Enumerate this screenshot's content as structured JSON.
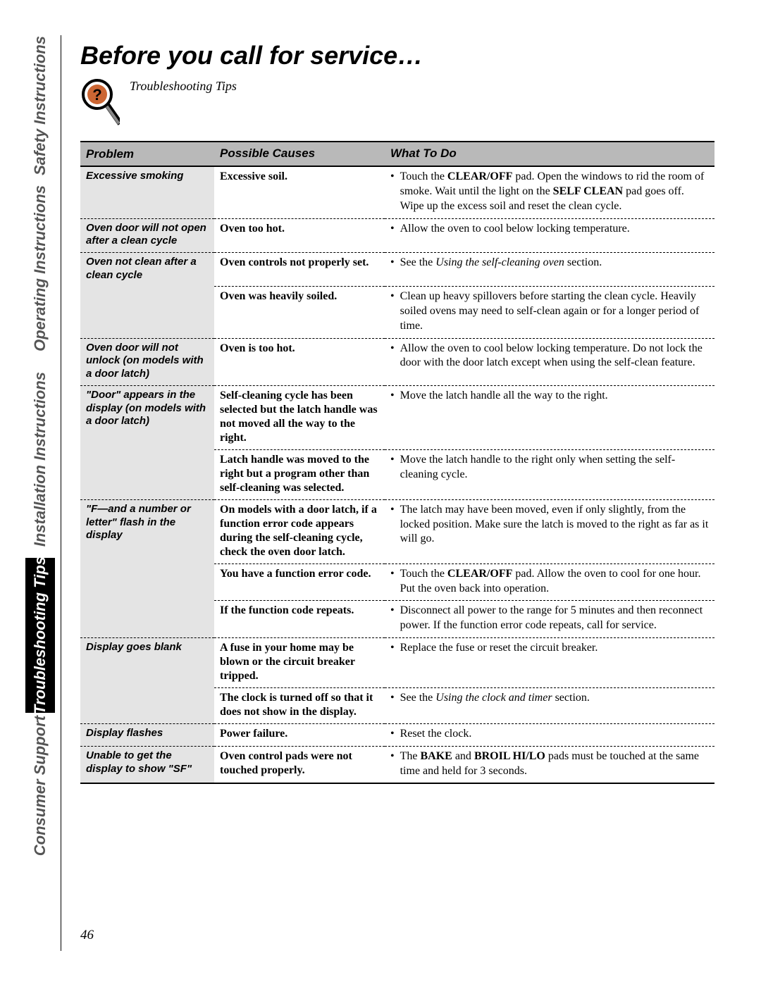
{
  "page_number": "46",
  "title": "Before you call for service…",
  "subtitle": "Troubleshooting Tips",
  "tabs": [
    {
      "label": "Safety Instructions",
      "active": false
    },
    {
      "label": "Operating Instructions",
      "active": false
    },
    {
      "label": "Installation Instructions",
      "active": false
    },
    {
      "label": "Troubleshooting Tips",
      "active": true
    },
    {
      "label": "Consumer Support",
      "active": false
    }
  ],
  "tab_heights": [
    200,
    262,
    280,
    220,
    208
  ],
  "headers": {
    "c1": "Problem",
    "c2": "Possible Causes",
    "c3": "What To Do"
  },
  "rows": [
    {
      "problem": "Excessive smoking",
      "cause": "Excessive soil.",
      "todo": "Touch the <b>CLEAR/OFF</b> pad. Open the windows to rid the room of smoke. Wait until the light on the <b>SELF CLEAN</b> pad goes off. Wipe up the excess soil and reset the clean cycle.",
      "newProblem": true,
      "sepAfter": true
    },
    {
      "problem": "Oven door will not open after a clean cycle",
      "cause": "Oven too hot.",
      "todo": "Allow the oven to cool below locking temperature.",
      "newProblem": true,
      "sepAfter": true
    },
    {
      "problem": "Oven not clean after a clean cycle",
      "cause": "Oven controls not properly set.",
      "todo": "See the <i>Using the self-cleaning oven</i> section.",
      "newProblem": true,
      "sepAfter": true
    },
    {
      "problem": "",
      "cause": "Oven was heavily soiled.",
      "todo": "Clean up heavy spillovers before starting the clean cycle. Heavily soiled ovens may need to self-clean again or for a longer period of time.",
      "newProblem": false,
      "sepAfter": true
    },
    {
      "problem": "Oven door will not unlock (on models with a door latch)",
      "cause": "Oven is too hot.",
      "todo": "Allow the oven to cool below locking temperature. Do not lock the door with the door latch except when using the self-clean feature.",
      "newProblem": true,
      "sepAfter": true
    },
    {
      "problem": "\"Door\" appears in the display (on models with a door latch)",
      "cause": "Self-cleaning cycle has been selected but the latch handle was not moved all the way to the right.",
      "todo": "Move the latch handle all the way to the right.",
      "newProblem": true,
      "sepAfter": true
    },
    {
      "problem": "",
      "cause": "Latch handle was moved to the right but a program other than self-cleaning was selected.",
      "todo": "Move the latch handle to the right only when setting the self-cleaning cycle.",
      "newProblem": false,
      "sepAfter": true
    },
    {
      "problem": "\"F—and a number or letter\" flash in the display",
      "cause": "On models with a door latch, if a function error code appears during the self-cleaning cycle, check the oven door latch.",
      "todo": "The latch may have been moved, even if only slightly, from the locked position. Make sure the latch is moved to the right as far as it will go.",
      "newProblem": true,
      "sepAfter": true
    },
    {
      "problem": "",
      "cause": "You have a function error code.",
      "todo": "Touch the <b>CLEAR/OFF</b> pad. Allow the oven to cool for one hour. Put the oven back into operation.",
      "newProblem": false,
      "sepAfter": true
    },
    {
      "problem": "",
      "cause": "If the function code repeats.",
      "todo": "Disconnect all power to the range for 5 minutes and then reconnect power. If the function error code repeats, call for service.",
      "newProblem": false,
      "sepAfter": true
    },
    {
      "problem": "Display goes blank",
      "cause": "A fuse in your home may be blown or the circuit breaker tripped.",
      "todo": "Replace the fuse or reset the circuit breaker.",
      "newProblem": true,
      "sepAfter": true
    },
    {
      "problem": "",
      "cause": "The clock is turned off so that it does not show in the display.",
      "todo": "See the <i>Using the clock and timer</i> section.",
      "newProblem": false,
      "sepAfter": true
    },
    {
      "problem": "Display flashes",
      "cause": "Power failure.",
      "todo": "Reset the clock.",
      "newProblem": true,
      "sepAfter": true
    },
    {
      "problem": "Unable to get the display to show \"SF\"",
      "cause": "Oven control pads were not touched properly.",
      "todo": "The <b>BAKE</b> and <b>BROIL HI/LO</b> pads must be touched at the same time and held for 3 seconds.",
      "newProblem": true,
      "sepAfter": false,
      "last": true
    }
  ],
  "colors": {
    "header_bg": "#b9b9b9",
    "problem_bg": "#e4e4e4",
    "tab_active_bg": "#000000",
    "tab_active_fg": "#ffffff",
    "tab_inactive_fg": "#555555",
    "rule": "#000000"
  }
}
